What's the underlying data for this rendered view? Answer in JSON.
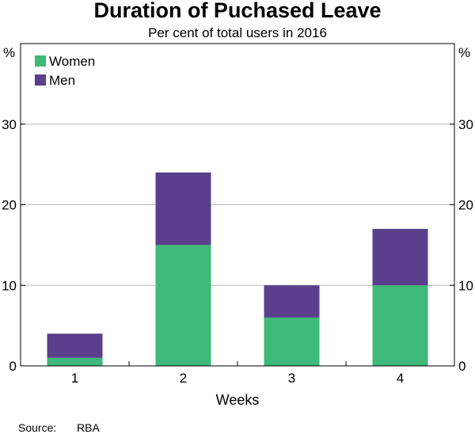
{
  "chart_data": {
    "type": "bar",
    "stacked": true,
    "title": "Duration of Puchased Leave",
    "subtitle": "Per cent of total users in 2016",
    "xlabel": "Weeks",
    "ylabel_left": "%",
    "ylabel_right": "%",
    "categories": [
      "1",
      "2",
      "3",
      "4"
    ],
    "series": [
      {
        "name": "Women",
        "color": "#3dba78",
        "values": [
          1,
          15,
          6,
          10
        ]
      },
      {
        "name": "Men",
        "color": "#5a3f8c",
        "values": [
          3,
          9,
          4,
          7
        ]
      }
    ],
    "ylim": [
      0,
      40
    ],
    "yticks": [
      0,
      10,
      20,
      30
    ],
    "grid": true,
    "legend": "top-left",
    "source_label": "Source:",
    "source_value": "RBA"
  }
}
